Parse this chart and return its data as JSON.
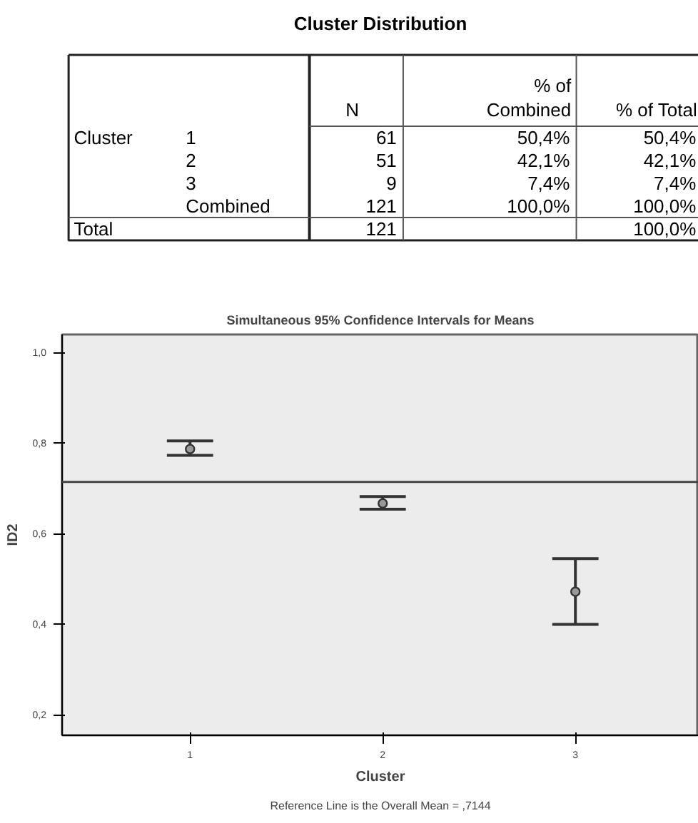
{
  "chart_data": [
    {
      "type": "other",
      "title": "Cluster Distribution",
      "categories": [
        "N",
        "% of Combined",
        "% of Total"
      ],
      "y_categories": [
        "Cluster",
        null,
        null,
        null,
        "Total"
      ],
      "y2_categories": [
        "1",
        "2",
        "3",
        "Combined",
        null
      ],
      "cell_labels": [
        [
          "61",
          "50,4%",
          "50,4%"
        ],
        [
          "51",
          "42,1%",
          "42,1%"
        ],
        [
          "9",
          "7,4%",
          "7,4%"
        ],
        [
          "121",
          "100,0%",
          "100,0%"
        ],
        [
          "121",
          null,
          "100,0%"
        ]
      ]
    },
    {
      "type": "scatter",
      "title": "Simultaneous 95% Confidence Intervals for Means",
      "xlabel": "Cluster",
      "ylabel": "ID2",
      "categories": [
        "1",
        "2",
        "3"
      ],
      "series": [
        {
          "color": "#333333",
          "values": [
            0.787,
            0.667,
            0.472
          ],
          "errors": [
            [
              0.773,
              0.805
            ],
            [
              0.654,
              0.682
            ],
            [
              0.4,
              0.545
            ]
          ]
        }
      ],
      "marker": "circle",
      "grid": false,
      "ylim": [
        0.155,
        1.04
      ],
      "yticks": [
        {
          "value": 0.2,
          "label": "0,2"
        },
        {
          "value": 0.4,
          "label": "0,4"
        },
        {
          "value": 0.6,
          "label": "0,6"
        },
        {
          "value": 0.8,
          "label": "0,8"
        },
        {
          "value": 1.0,
          "label": "1,0"
        }
      ],
      "ref_lines": [
        {
          "axis": "y",
          "value": 0.7144
        }
      ],
      "annotations": [
        "Reference Line is the Overall Mean = ,7144"
      ]
    }
  ]
}
